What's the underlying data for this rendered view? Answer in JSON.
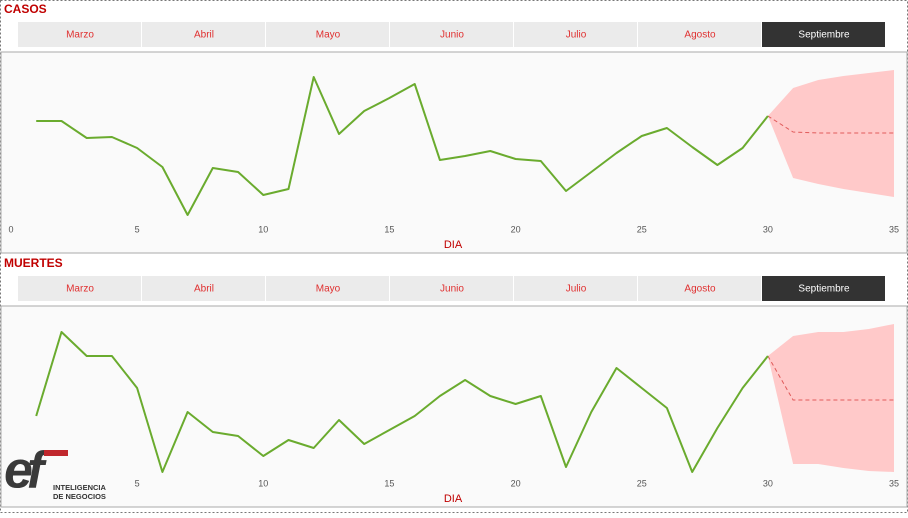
{
  "tabs": [
    "Marzo",
    "Abril",
    "Mayo",
    "Junio",
    "Julio",
    "Agosto",
    "Septiembre"
  ],
  "selected_tab": 6,
  "logo": {
    "mark": "ef",
    "lines": [
      "INTELIGENCIA",
      "DE NEGOCIOS"
    ]
  },
  "chart_data": [
    {
      "type": "line",
      "title": "CASOS",
      "x_label": "DIA",
      "x": [
        1,
        2,
        3,
        4,
        5,
        6,
        7,
        8,
        9,
        10,
        11,
        12,
        13,
        14,
        15,
        16,
        17,
        18,
        19,
        20,
        21,
        22,
        23,
        24,
        25,
        26,
        27,
        28,
        29,
        30
      ],
      "series": [
        {
          "color": "#6aab2e",
          "values": [
            109,
            109,
            92,
            93,
            82,
            63,
            15,
            62,
            58,
            35,
            41,
            153,
            96,
            119,
            132,
            146,
            70,
            74,
            79,
            71,
            69,
            39,
            58,
            77,
            94,
            102,
            83,
            65,
            82,
            114
          ]
        }
      ],
      "forecast": {
        "color": "#e05a5a",
        "band_color": "#ffc9c9",
        "x": [
          30,
          31,
          32,
          33,
          34,
          35
        ],
        "values": [
          114,
          98,
          97,
          97,
          97,
          97
        ],
        "upper": [
          114,
          142,
          150,
          154,
          157,
          160
        ],
        "lower": [
          114,
          52,
          46,
          41,
          37,
          33
        ]
      },
      "xlim": [
        0,
        35
      ],
      "xticks": [
        0,
        5,
        10,
        15,
        20,
        25,
        30,
        35
      ],
      "ylim": [
        0,
        170
      ]
    },
    {
      "type": "line",
      "title": "MUERTES",
      "x_label": "DIA",
      "x": [
        1,
        2,
        3,
        4,
        5,
        6,
        7,
        8,
        9,
        10,
        11,
        12,
        13,
        14,
        15,
        16,
        17,
        18,
        19,
        20,
        21,
        22,
        23,
        24,
        25,
        26,
        27,
        28,
        29,
        30
      ],
      "series": [
        {
          "color": "#6aab2e",
          "values": [
            68,
            152,
            128,
            128,
            96,
            12,
            72,
            52,
            48,
            28,
            44,
            36,
            64,
            40,
            54,
            68,
            88,
            104,
            88,
            80,
            88,
            17,
            72,
            116,
            96,
            76,
            12,
            56,
            96,
            128
          ]
        }
      ],
      "forecast": {
        "color": "#e05a5a",
        "band_color": "#ffc9c9",
        "x": [
          30,
          31,
          32,
          33,
          34,
          35
        ],
        "values": [
          128,
          84,
          84,
          84,
          84,
          84
        ],
        "upper": [
          128,
          148,
          152,
          152,
          155,
          160
        ],
        "lower": [
          128,
          20,
          20,
          16,
          13,
          12
        ]
      },
      "xlim": [
        0,
        35
      ],
      "xticks": [
        0,
        5,
        10,
        15,
        20,
        25,
        30,
        35
      ],
      "ylim": [
        0,
        170
      ]
    }
  ]
}
